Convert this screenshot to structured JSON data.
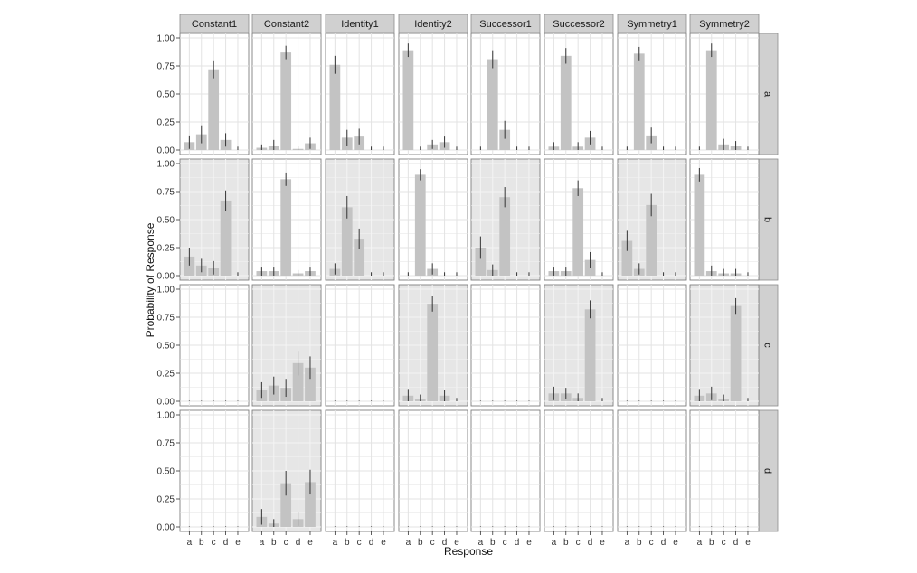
{
  "chart_data": {
    "type": "bar",
    "facet_columns": [
      "Constant1",
      "Constant2",
      "Identity1",
      "Identity2",
      "Successor1",
      "Successor2",
      "Symmetry1",
      "Symmetry2"
    ],
    "facet_rows": [
      "a",
      "b",
      "c",
      "d"
    ],
    "categories": [
      "a",
      "b",
      "c",
      "d",
      "e"
    ],
    "xlabel": "Response",
    "ylabel": "Probability of Response",
    "ylim": [
      0,
      1
    ],
    "yticks": [
      "0.00",
      "0.25",
      "0.50",
      "0.75",
      "1.00"
    ],
    "grid": true,
    "colors": {
      "bar": "#c3c3c3",
      "errorbar": "#333333",
      "highlight_panel": "#e6e6e6",
      "strip": "#d0d0d0"
    },
    "panels": [
      {
        "row": "a",
        "column": "Constant1",
        "highlighted": false,
        "values": [
          0.07,
          0.14,
          0.72,
          0.09,
          0.0
        ],
        "errors": [
          0.06,
          0.08,
          0.08,
          0.06,
          0.03
        ]
      },
      {
        "row": "a",
        "column": "Constant2",
        "highlighted": false,
        "values": [
          0.02,
          0.04,
          0.87,
          0.01,
          0.06
        ],
        "errors": [
          0.03,
          0.05,
          0.06,
          0.03,
          0.05
        ]
      },
      {
        "row": "a",
        "column": "Identity1",
        "highlighted": false,
        "values": [
          0.76,
          0.11,
          0.12,
          0.0,
          0.0
        ],
        "errors": [
          0.08,
          0.07,
          0.07,
          0.03,
          0.03
        ]
      },
      {
        "row": "a",
        "column": "Identity2",
        "highlighted": false,
        "values": [
          0.89,
          0.0,
          0.05,
          0.07,
          0.0
        ],
        "errors": [
          0.06,
          0.03,
          0.04,
          0.05,
          0.03
        ]
      },
      {
        "row": "a",
        "column": "Successor1",
        "highlighted": false,
        "values": [
          0.0,
          0.81,
          0.18,
          0.0,
          0.0
        ],
        "errors": [
          0.03,
          0.08,
          0.08,
          0.03,
          0.03
        ]
      },
      {
        "row": "a",
        "column": "Successor2",
        "highlighted": false,
        "values": [
          0.03,
          0.84,
          0.03,
          0.11,
          0.0
        ],
        "errors": [
          0.04,
          0.07,
          0.04,
          0.06,
          0.03
        ]
      },
      {
        "row": "a",
        "column": "Symmetry1",
        "highlighted": false,
        "values": [
          0.0,
          0.86,
          0.13,
          0.0,
          0.0
        ],
        "errors": [
          0.03,
          0.06,
          0.07,
          0.03,
          0.03
        ]
      },
      {
        "row": "a",
        "column": "Symmetry2",
        "highlighted": false,
        "values": [
          0.0,
          0.89,
          0.05,
          0.04,
          0.0
        ],
        "errors": [
          0.03,
          0.06,
          0.05,
          0.04,
          0.03
        ]
      },
      {
        "row": "b",
        "column": "Constant1",
        "highlighted": true,
        "values": [
          0.17,
          0.09,
          0.07,
          0.67,
          0.0
        ],
        "errors": [
          0.08,
          0.06,
          0.06,
          0.09,
          0.03
        ]
      },
      {
        "row": "b",
        "column": "Constant2",
        "highlighted": false,
        "values": [
          0.04,
          0.04,
          0.86,
          0.02,
          0.04
        ],
        "errors": [
          0.04,
          0.04,
          0.06,
          0.03,
          0.04
        ]
      },
      {
        "row": "b",
        "column": "Identity1",
        "highlighted": true,
        "values": [
          0.06,
          0.61,
          0.33,
          0.0,
          0.0
        ],
        "errors": [
          0.05,
          0.1,
          0.09,
          0.03,
          0.03
        ]
      },
      {
        "row": "b",
        "column": "Identity2",
        "highlighted": false,
        "values": [
          0.0,
          0.9,
          0.06,
          0.0,
          0.0
        ],
        "errors": [
          0.03,
          0.05,
          0.05,
          0.03,
          0.03
        ]
      },
      {
        "row": "b",
        "column": "Successor1",
        "highlighted": true,
        "values": [
          0.25,
          0.05,
          0.7,
          0.0,
          0.0
        ],
        "errors": [
          0.1,
          0.05,
          0.09,
          0.03,
          0.03
        ]
      },
      {
        "row": "b",
        "column": "Successor2",
        "highlighted": false,
        "values": [
          0.04,
          0.04,
          0.78,
          0.14,
          0.0
        ],
        "errors": [
          0.04,
          0.04,
          0.07,
          0.07,
          0.03
        ]
      },
      {
        "row": "b",
        "column": "Symmetry1",
        "highlighted": true,
        "values": [
          0.31,
          0.06,
          0.63,
          0.0,
          0.0
        ],
        "errors": [
          0.09,
          0.05,
          0.1,
          0.03,
          0.03
        ]
      },
      {
        "row": "b",
        "column": "Symmetry2",
        "highlighted": false,
        "values": [
          0.9,
          0.04,
          0.02,
          0.02,
          0.0
        ],
        "errors": [
          0.06,
          0.05,
          0.04,
          0.04,
          0.03
        ]
      },
      {
        "row": "c",
        "column": "Constant1",
        "highlighted": false,
        "values": [
          0.0,
          0.0,
          0.0,
          0.0,
          0.0
        ],
        "errors": [
          0.005,
          0.005,
          0.005,
          0.005,
          0.005
        ]
      },
      {
        "row": "c",
        "column": "Constant2",
        "highlighted": true,
        "values": [
          0.1,
          0.14,
          0.12,
          0.34,
          0.3
        ],
        "errors": [
          0.07,
          0.08,
          0.08,
          0.11,
          0.1
        ]
      },
      {
        "row": "c",
        "column": "Identity1",
        "highlighted": false,
        "values": [
          0.0,
          0.0,
          0.0,
          0.0,
          0.0
        ],
        "errors": [
          0.005,
          0.005,
          0.005,
          0.005,
          0.005
        ]
      },
      {
        "row": "c",
        "column": "Identity2",
        "highlighted": true,
        "values": [
          0.05,
          0.02,
          0.87,
          0.05,
          0.0
        ],
        "errors": [
          0.06,
          0.04,
          0.07,
          0.05,
          0.03
        ]
      },
      {
        "row": "c",
        "column": "Successor1",
        "highlighted": false,
        "values": [
          0.0,
          0.0,
          0.0,
          0.0,
          0.0
        ],
        "errors": [
          0.005,
          0.005,
          0.005,
          0.005,
          0.005
        ]
      },
      {
        "row": "c",
        "column": "Successor2",
        "highlighted": true,
        "values": [
          0.07,
          0.07,
          0.03,
          0.82,
          0.0
        ],
        "errors": [
          0.06,
          0.05,
          0.04,
          0.08,
          0.03
        ]
      },
      {
        "row": "c",
        "column": "Symmetry1",
        "highlighted": false,
        "values": [
          0.0,
          0.0,
          0.0,
          0.0,
          0.0
        ],
        "errors": [
          0.005,
          0.005,
          0.005,
          0.005,
          0.005
        ]
      },
      {
        "row": "c",
        "column": "Symmetry2",
        "highlighted": true,
        "values": [
          0.05,
          0.07,
          0.02,
          0.85,
          0.0
        ],
        "errors": [
          0.06,
          0.06,
          0.04,
          0.07,
          0.03
        ]
      },
      {
        "row": "d",
        "column": "Constant1",
        "highlighted": false,
        "values": [
          0.0,
          0.0,
          0.0,
          0.0,
          0.0
        ],
        "errors": [
          0.005,
          0.005,
          0.005,
          0.005,
          0.005
        ]
      },
      {
        "row": "d",
        "column": "Constant2",
        "highlighted": true,
        "values": [
          0.09,
          0.03,
          0.39,
          0.07,
          0.4
        ],
        "errors": [
          0.07,
          0.04,
          0.11,
          0.06,
          0.11
        ]
      },
      {
        "row": "d",
        "column": "Identity1",
        "highlighted": false,
        "values": [
          0.0,
          0.0,
          0.0,
          0.0,
          0.0
        ],
        "errors": [
          0.005,
          0.005,
          0.005,
          0.005,
          0.005
        ]
      },
      {
        "row": "d",
        "column": "Identity2",
        "highlighted": false,
        "values": [
          0.0,
          0.0,
          0.0,
          0.0,
          0.0
        ],
        "errors": [
          0.005,
          0.005,
          0.005,
          0.005,
          0.005
        ]
      },
      {
        "row": "d",
        "column": "Successor1",
        "highlighted": false,
        "values": [
          0.0,
          0.0,
          0.0,
          0.0,
          0.0
        ],
        "errors": [
          0.005,
          0.005,
          0.005,
          0.005,
          0.005
        ]
      },
      {
        "row": "d",
        "column": "Successor2",
        "highlighted": false,
        "values": [
          0.0,
          0.0,
          0.0,
          0.0,
          0.0
        ],
        "errors": [
          0.005,
          0.005,
          0.005,
          0.005,
          0.005
        ]
      },
      {
        "row": "d",
        "column": "Symmetry1",
        "highlighted": false,
        "values": [
          0.0,
          0.0,
          0.0,
          0.0,
          0.0
        ],
        "errors": [
          0.005,
          0.005,
          0.005,
          0.005,
          0.005
        ]
      },
      {
        "row": "d",
        "column": "Symmetry2",
        "highlighted": false,
        "values": [
          0.0,
          0.0,
          0.0,
          0.0,
          0.0
        ],
        "errors": [
          0.005,
          0.005,
          0.005,
          0.005,
          0.005
        ]
      }
    ]
  }
}
